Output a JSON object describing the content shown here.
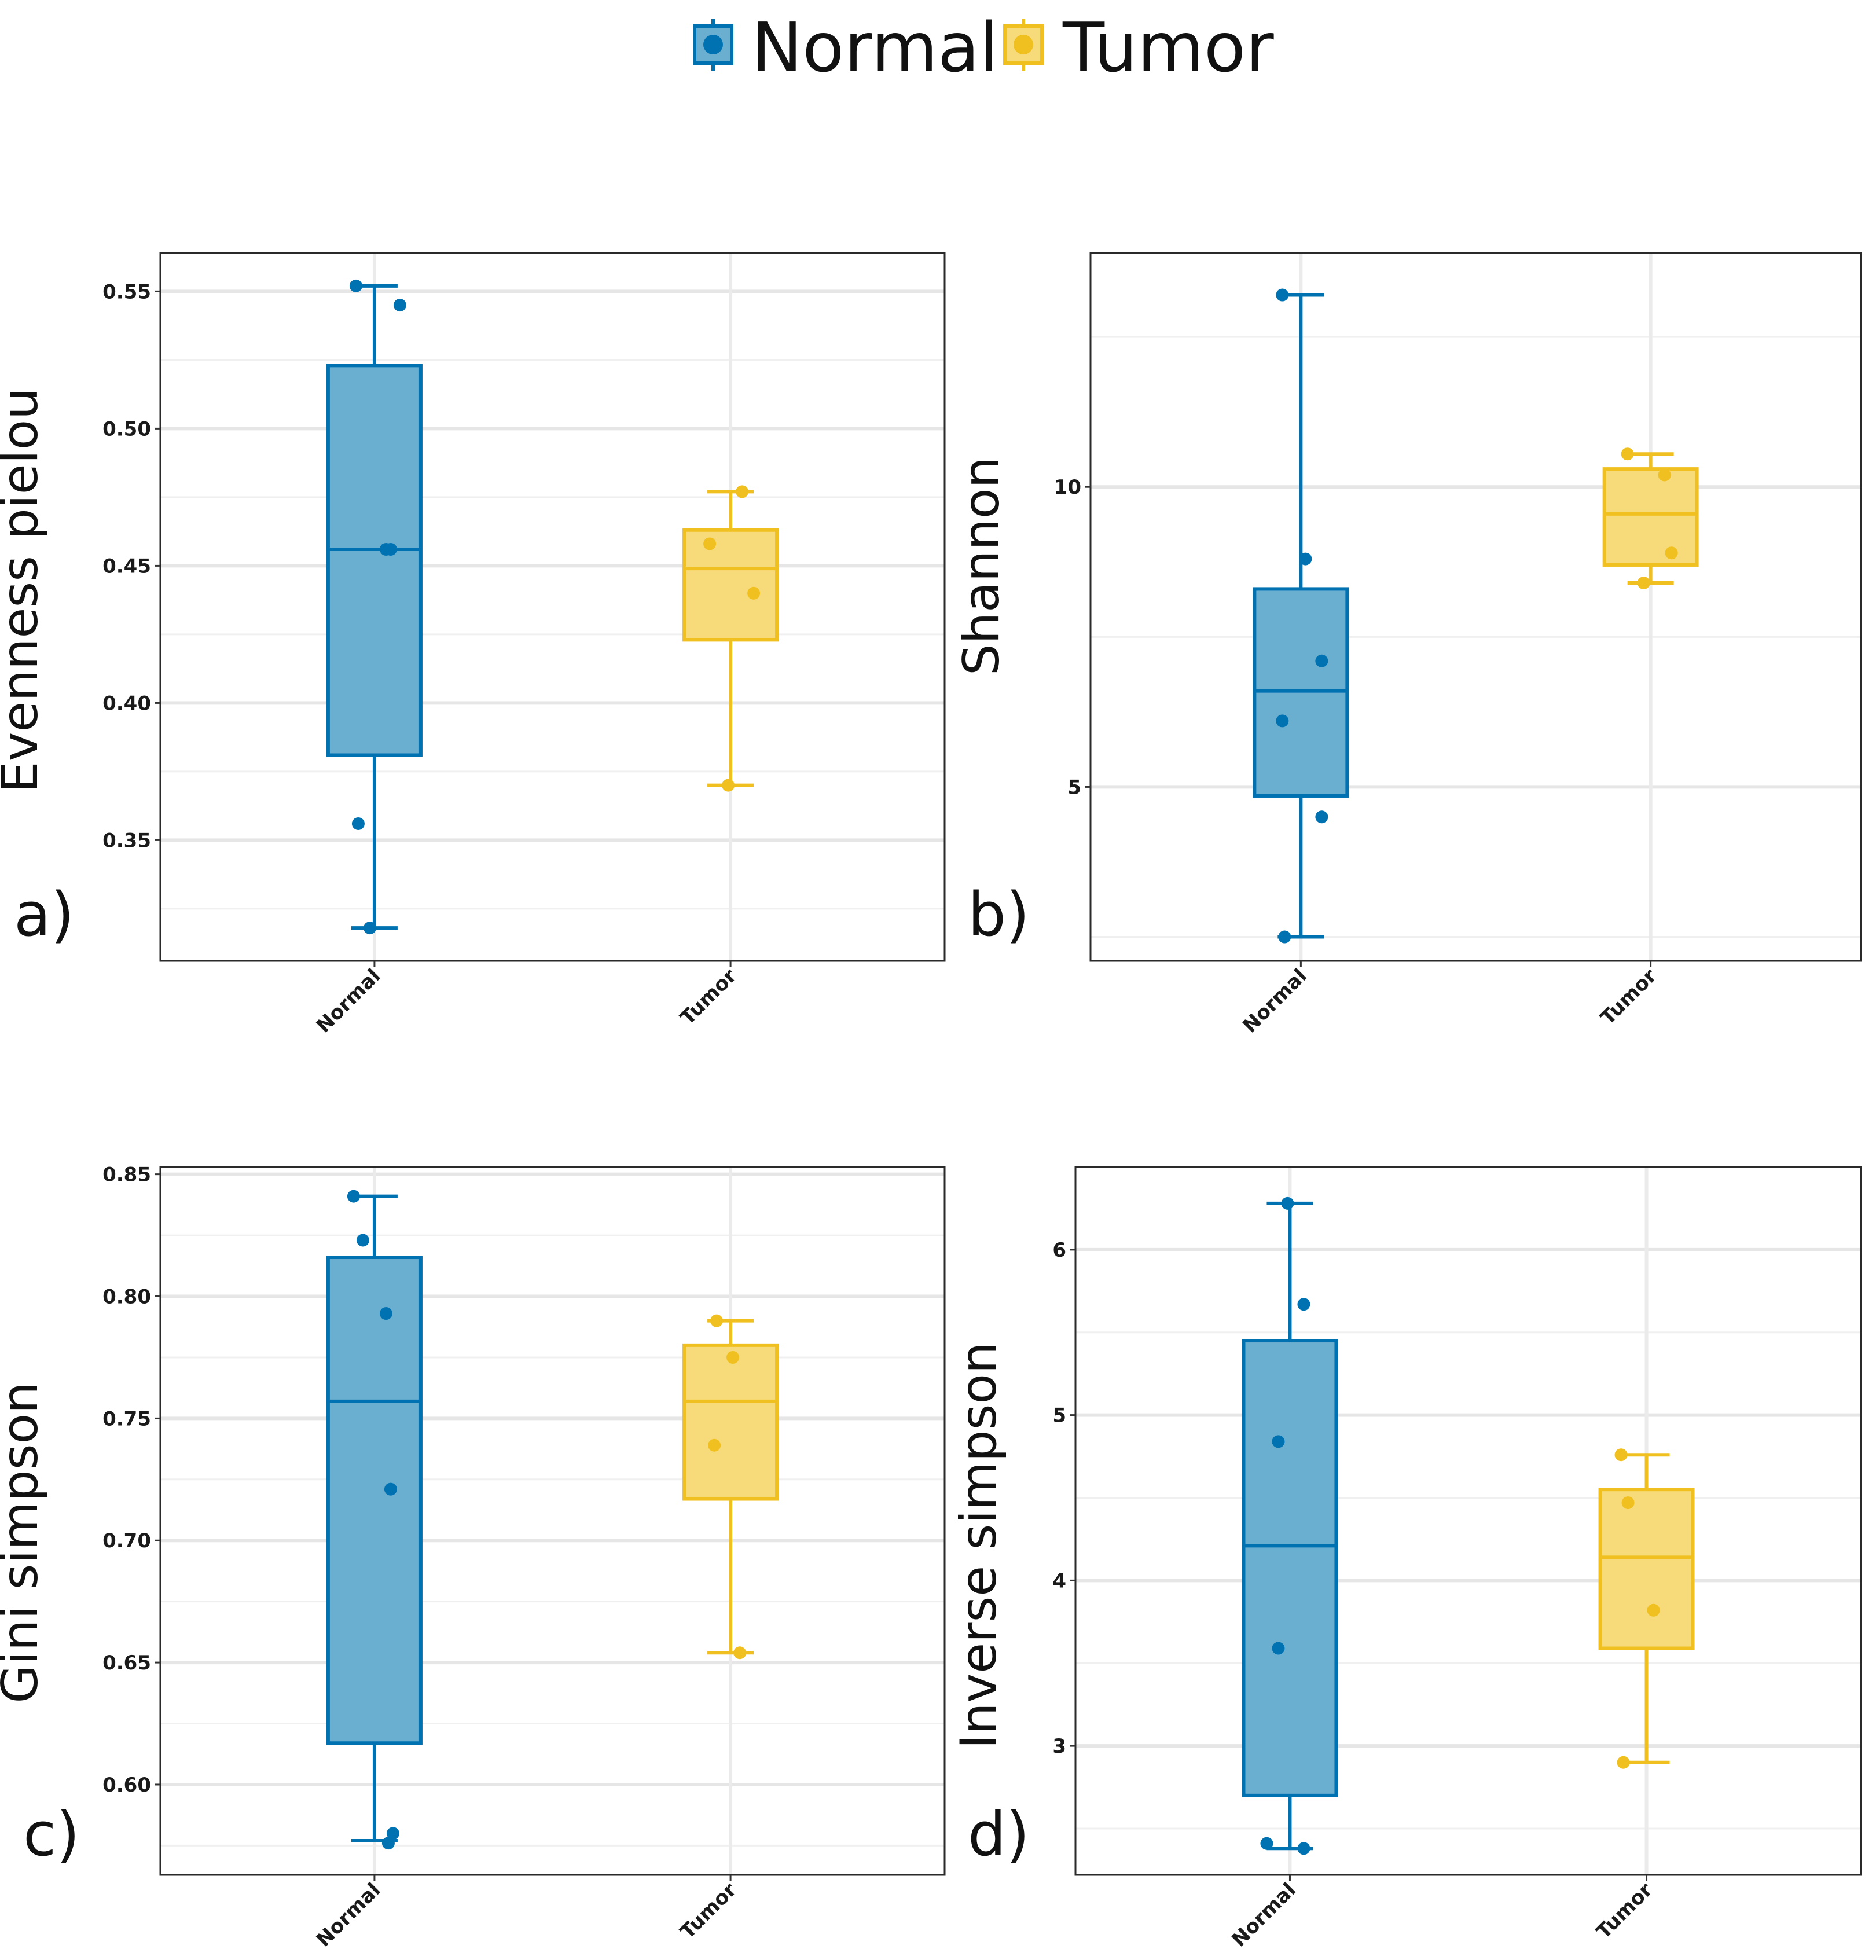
{
  "legend": {
    "items": [
      {
        "label": "Normal",
        "color": "#0072B2",
        "fill": "#6BAFD0"
      },
      {
        "label": "Tumor",
        "color": "#F0C020",
        "fill": "#F7DB7A"
      }
    ]
  },
  "chart_data": [
    {
      "type": "box",
      "panel": "a)",
      "ylabel": "Evenness pielou",
      "categories": [
        "Normal",
        "Tumor"
      ],
      "ylim": [
        0.306,
        0.564
      ],
      "yticks": [
        0.35,
        0.4,
        0.45,
        0.5,
        0.55
      ],
      "ytick_labels": [
        "0.35",
        "0.40",
        "0.45",
        "0.50",
        "0.55"
      ],
      "grid_minor": [
        0.325,
        0.375,
        0.425,
        0.475,
        0.525
      ],
      "series": [
        {
          "name": "Normal",
          "min": 0.318,
          "q1": 0.381,
          "median": 0.456,
          "q3": 0.523,
          "max": 0.552,
          "points": [
            [
              -0.08,
              0.552
            ],
            [
              0.11,
              0.545
            ],
            [
              0.05,
              0.456
            ],
            [
              0.07,
              0.456
            ],
            [
              -0.07,
              0.356
            ],
            [
              -0.02,
              0.318
            ]
          ]
        },
        {
          "name": "Tumor",
          "min": 0.37,
          "q1": 0.423,
          "median": 0.449,
          "q3": 0.463,
          "max": 0.477,
          "points": [
            [
              0.05,
              0.477
            ],
            [
              -0.09,
              0.458
            ],
            [
              0.1,
              0.44
            ],
            [
              -0.01,
              0.37
            ]
          ]
        }
      ]
    },
    {
      "type": "box",
      "panel": "b)",
      "ylabel": "Shannon",
      "categories": [
        "Normal",
        "Tumor"
      ],
      "ylim": [
        2.1,
        13.9
      ],
      "yticks": [
        5,
        10
      ],
      "ytick_labels": [
        "5",
        "10"
      ],
      "grid_minor": [
        2.5,
        7.5,
        12.5
      ],
      "series": [
        {
          "name": "Normal",
          "min": 2.5,
          "q1": 4.85,
          "median": 6.6,
          "q3": 8.3,
          "max": 13.2,
          "points": [
            [
              -0.08,
              13.2
            ],
            [
              0.02,
              8.8
            ],
            [
              0.09,
              7.1
            ],
            [
              -0.08,
              6.1
            ],
            [
              0.09,
              4.5
            ],
            [
              -0.07,
              2.5
            ]
          ]
        },
        {
          "name": "Tumor",
          "min": 8.4,
          "q1": 8.7,
          "median": 9.55,
          "q3": 10.3,
          "max": 10.55,
          "points": [
            [
              -0.1,
              10.55
            ],
            [
              0.06,
              10.2
            ],
            [
              0.09,
              8.9
            ],
            [
              -0.03,
              8.4
            ]
          ]
        }
      ]
    },
    {
      "type": "box",
      "panel": "c)",
      "ylabel": "Gini simpson",
      "categories": [
        "Normal",
        "Tumor"
      ],
      "ylim": [
        0.563,
        0.853
      ],
      "yticks": [
        0.6,
        0.65,
        0.7,
        0.75,
        0.8,
        0.85
      ],
      "ytick_labels": [
        "0.60",
        "0.65",
        "0.70",
        "0.75",
        "0.80",
        "0.85"
      ],
      "grid_minor": [
        0.575,
        0.625,
        0.675,
        0.725,
        0.775,
        0.825
      ],
      "series": [
        {
          "name": "Normal",
          "min": 0.577,
          "q1": 0.617,
          "median": 0.757,
          "q3": 0.816,
          "max": 0.841,
          "points": [
            [
              -0.09,
              0.841
            ],
            [
              -0.05,
              0.823
            ],
            [
              0.05,
              0.793
            ],
            [
              0.07,
              0.721
            ],
            [
              0.08,
              0.58
            ],
            [
              0.06,
              0.576
            ]
          ]
        },
        {
          "name": "Tumor",
          "min": 0.654,
          "q1": 0.717,
          "median": 0.757,
          "q3": 0.78,
          "max": 0.79,
          "points": [
            [
              -0.06,
              0.79
            ],
            [
              0.01,
              0.775
            ],
            [
              -0.07,
              0.739
            ],
            [
              0.04,
              0.654
            ]
          ]
        }
      ]
    },
    {
      "type": "box",
      "panel": "d)",
      "ylabel": "Inverse simpson",
      "categories": [
        "Normal",
        "Tumor"
      ],
      "ylim": [
        2.22,
        6.5
      ],
      "yticks": [
        3,
        4,
        5,
        6
      ],
      "ytick_labels": [
        "3",
        "4",
        "5",
        "6"
      ],
      "grid_minor": [
        2.5,
        3.5,
        4.5,
        5.5
      ],
      "series": [
        {
          "name": "Normal",
          "min": 2.38,
          "q1": 2.7,
          "median": 4.21,
          "q3": 5.45,
          "max": 6.28,
          "points": [
            [
              -0.01,
              6.28
            ],
            [
              0.06,
              5.67
            ],
            [
              -0.05,
              4.84
            ],
            [
              -0.05,
              3.59
            ],
            [
              -0.1,
              2.41
            ],
            [
              0.06,
              2.38
            ]
          ]
        },
        {
          "name": "Tumor",
          "min": 2.9,
          "q1": 3.59,
          "median": 4.14,
          "q3": 4.55,
          "max": 4.76,
          "points": [
            [
              -0.11,
              4.76
            ],
            [
              -0.08,
              4.47
            ],
            [
              0.03,
              3.82
            ],
            [
              -0.1,
              2.9
            ]
          ]
        }
      ]
    }
  ]
}
